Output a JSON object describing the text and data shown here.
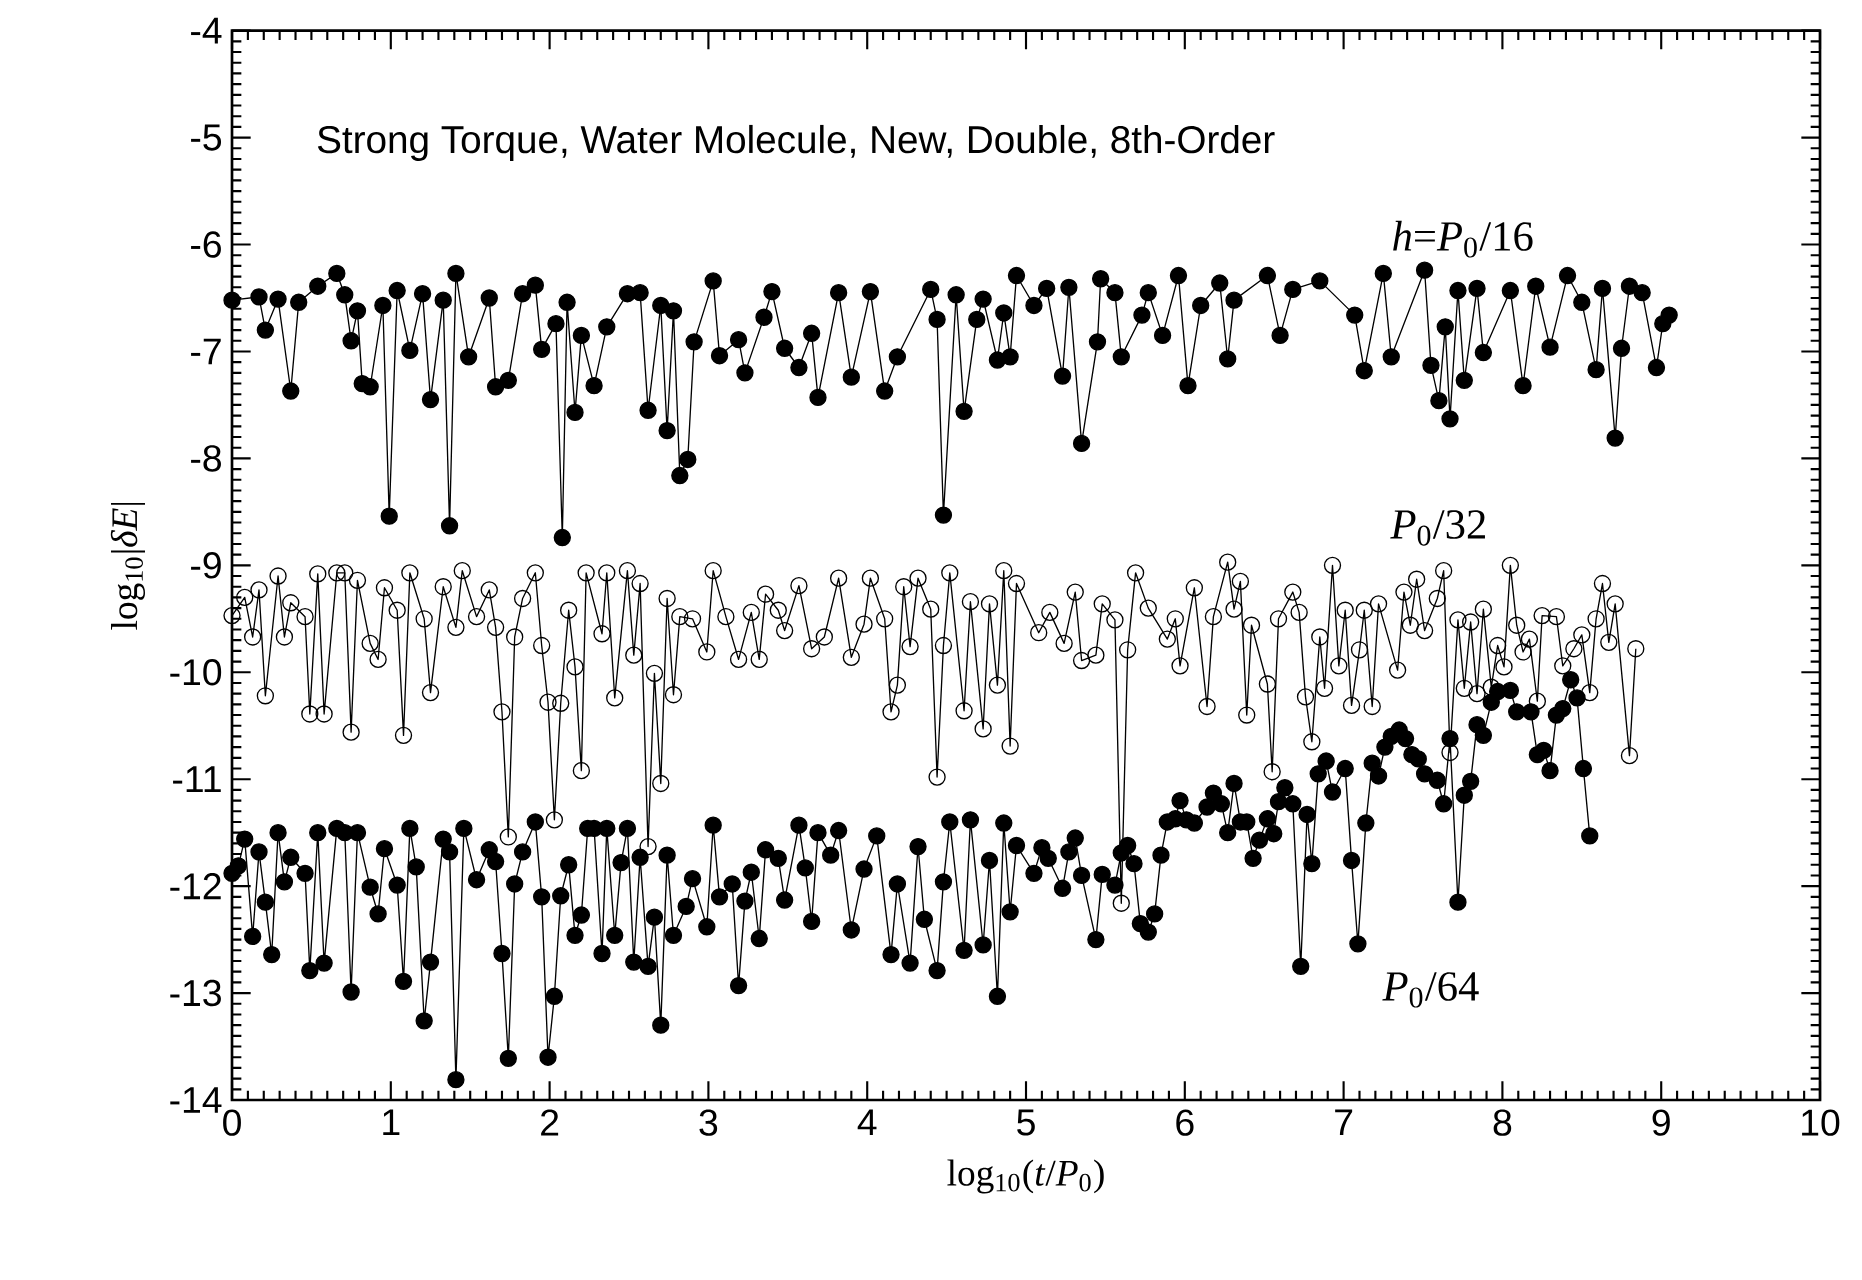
{
  "chart_data": {
    "type": "line",
    "title": "Strong Torque, Water Molecule, New, Double, 8th-Order",
    "xlabel": "log$_{10}$(*t*/*P*$_{0}$)",
    "ylabel": "log$_{10}$|*δE*|",
    "xlim": [
      0,
      10
    ],
    "ylim": [
      -14,
      -4
    ],
    "xticks": [
      0,
      1,
      2,
      3,
      4,
      5,
      6,
      7,
      8,
      9,
      10
    ],
    "yticks": [
      -14,
      -13,
      -12,
      -11,
      -10,
      -9,
      -8,
      -7,
      -6,
      -5,
      -4
    ],
    "line_style": "solid",
    "series": [
      {
        "name": "*h*=*P*$_{0}$/16",
        "color": "#000000",
        "marker": "circle",
        "x": [
          0.0,
          0.17,
          0.21,
          0.29,
          0.37,
          0.42,
          0.54,
          0.66,
          0.71,
          0.75,
          0.79,
          0.82,
          0.87,
          0.95,
          0.99,
          1.04,
          1.12,
          1.2,
          1.25,
          1.33,
          1.37,
          1.41,
          1.49,
          1.62,
          1.66,
          1.74,
          1.83,
          1.91,
          1.95,
          2.04,
          2.08,
          2.11,
          2.16,
          2.2,
          2.28,
          2.36,
          2.49,
          2.57,
          2.62,
          2.7,
          2.74,
          2.78,
          2.82,
          2.87,
          2.91,
          3.03,
          3.07,
          3.19,
          3.23,
          3.35,
          3.4,
          3.48,
          3.57,
          3.65,
          3.69,
          3.82,
          3.9,
          4.02,
          4.11,
          4.19,
          4.4,
          4.44,
          4.48,
          4.56,
          4.61,
          4.69,
          4.73,
          4.82,
          4.86,
          4.9,
          4.94,
          5.05,
          5.13,
          5.23,
          5.27,
          5.35,
          5.45,
          5.47,
          5.56,
          5.6,
          5.73,
          5.77,
          5.86,
          5.96,
          6.02,
          6.1,
          6.22,
          6.27,
          6.31,
          6.52,
          6.6,
          6.68,
          6.85,
          7.07,
          7.13,
          7.25,
          7.3,
          7.51,
          7.55,
          7.6,
          7.64,
          7.67,
          7.72,
          7.76,
          7.84,
          7.88,
          8.05,
          8.13,
          8.21,
          8.3,
          8.41,
          8.5,
          8.59,
          8.63,
          8.71,
          8.75,
          8.8,
          8.88,
          8.97,
          9.01,
          9.05
        ],
        "values": [
          -6.52,
          -6.49,
          -6.8,
          -6.51,
          -7.37,
          -6.54,
          -6.39,
          -6.27,
          -6.47,
          -6.9,
          -6.62,
          -7.3,
          -7.33,
          -6.57,
          -8.54,
          -6.43,
          -6.99,
          -6.46,
          -7.45,
          -6.52,
          -8.63,
          -6.27,
          -7.05,
          -6.5,
          -7.33,
          -7.27,
          -6.46,
          -6.38,
          -6.98,
          -6.74,
          -8.74,
          -6.54,
          -7.57,
          -6.85,
          -7.32,
          -6.77,
          -6.46,
          -6.45,
          -7.55,
          -6.57,
          -7.74,
          -6.62,
          -8.16,
          -8.01,
          -6.91,
          -6.34,
          -7.04,
          -6.89,
          -7.2,
          -6.68,
          -6.44,
          -6.97,
          -7.15,
          -6.83,
          -7.43,
          -6.45,
          -7.24,
          -6.44,
          -7.37,
          -7.05,
          -6.42,
          -6.7,
          -8.53,
          -6.47,
          -7.56,
          -6.7,
          -6.51,
          -7.08,
          -6.64,
          -7.05,
          -6.29,
          -6.57,
          -6.41,
          -7.23,
          -6.4,
          -7.86,
          -6.91,
          -6.32,
          -6.45,
          -7.05,
          -6.66,
          -6.45,
          -6.85,
          -6.29,
          -7.32,
          -6.57,
          -6.36,
          -7.07,
          -6.52,
          -6.29,
          -6.85,
          -6.42,
          -6.34,
          -6.66,
          -7.18,
          -6.27,
          -7.05,
          -6.24,
          -7.13,
          -7.46,
          -6.77,
          -7.63,
          -6.43,
          -7.27,
          -6.41,
          -7.01,
          -6.43,
          -7.32,
          -6.39,
          -6.96,
          -6.29,
          -6.54,
          -7.17,
          -6.41,
          -7.81,
          -6.97,
          -6.39,
          -6.45,
          -7.15,
          -6.74,
          -6.66
        ]
      },
      {
        "name": "*P*$_{0}$/32",
        "color": "#000000",
        "marker": "open circle",
        "x": [
          0.0,
          0.08,
          0.13,
          0.17,
          0.21,
          0.29,
          0.33,
          0.37,
          0.46,
          0.49,
          0.54,
          0.58,
          0.66,
          0.71,
          0.75,
          0.79,
          0.87,
          0.92,
          0.96,
          1.04,
          1.08,
          1.12,
          1.21,
          1.25,
          1.33,
          1.41,
          1.45,
          1.54,
          1.62,
          1.66,
          1.7,
          1.74,
          1.78,
          1.83,
          1.91,
          1.95,
          1.99,
          2.03,
          2.07,
          2.12,
          2.16,
          2.2,
          2.23,
          2.33,
          2.36,
          2.41,
          2.49,
          2.53,
          2.57,
          2.62,
          2.66,
          2.7,
          2.74,
          2.78,
          2.82,
          2.9,
          2.99,
          3.03,
          3.11,
          3.19,
          3.27,
          3.32,
          3.36,
          3.44,
          3.48,
          3.57,
          3.65,
          3.73,
          3.82,
          3.9,
          3.98,
          4.02,
          4.11,
          4.15,
          4.19,
          4.23,
          4.27,
          4.32,
          4.4,
          4.44,
          4.48,
          4.52,
          4.61,
          4.65,
          4.73,
          4.77,
          4.82,
          4.86,
          4.9,
          4.94,
          5.08,
          5.15,
          5.24,
          5.31,
          5.35,
          5.44,
          5.48,
          5.56,
          5.6,
          5.64,
          5.69,
          5.77,
          5.89,
          5.94,
          5.97,
          6.06,
          6.14,
          6.18,
          6.27,
          6.31,
          6.35,
          6.39,
          6.42,
          6.52,
          6.55,
          6.59,
          6.68,
          6.72,
          6.76,
          6.8,
          6.85,
          6.88,
          6.93,
          6.97,
          7.01,
          7.05,
          7.1,
          7.13,
          7.18,
          7.22,
          7.34,
          7.38,
          7.42,
          7.46,
          7.51,
          7.59,
          7.63,
          7.67,
          7.72,
          7.76,
          7.8,
          7.84,
          7.88,
          7.93,
          7.97,
          8.01,
          8.05,
          8.09,
          8.13,
          8.17,
          8.22,
          8.25,
          8.34,
          8.38,
          8.45,
          8.5,
          8.55,
          8.59,
          8.63,
          8.67,
          8.71,
          8.8,
          8.84
        ],
        "values": [
          -9.47,
          -9.3,
          -9.67,
          -9.23,
          -10.22,
          -9.1,
          -9.67,
          -9.35,
          -9.48,
          -10.39,
          -9.08,
          -10.39,
          -9.07,
          -9.07,
          -10.56,
          -9.14,
          -9.73,
          -9.88,
          -9.21,
          -9.42,
          -10.59,
          -9.07,
          -9.5,
          -10.19,
          -9.2,
          -9.58,
          -9.05,
          -9.48,
          -9.23,
          -9.58,
          -10.37,
          -11.54,
          -9.67,
          -9.31,
          -9.07,
          -9.75,
          -10.28,
          -11.38,
          -10.29,
          -9.42,
          -9.95,
          -10.92,
          -9.07,
          -9.64,
          -9.07,
          -10.24,
          -9.05,
          -9.84,
          -9.17,
          -11.63,
          -10.01,
          -11.04,
          -9.31,
          -10.21,
          -9.48,
          -9.5,
          -9.81,
          -9.05,
          -9.48,
          -9.88,
          -9.44,
          -9.88,
          -9.27,
          -9.42,
          -9.61,
          -9.19,
          -9.78,
          -9.67,
          -9.12,
          -9.86,
          -9.55,
          -9.12,
          -9.5,
          -10.37,
          -10.12,
          -9.2,
          -9.76,
          -9.12,
          -9.41,
          -10.98,
          -9.75,
          -9.07,
          -10.36,
          -9.34,
          -10.53,
          -9.36,
          -10.12,
          -9.05,
          -10.69,
          -9.17,
          -9.63,
          -9.44,
          -9.73,
          -9.25,
          -9.89,
          -9.84,
          -9.36,
          -9.51,
          -12.16,
          -9.79,
          -9.07,
          -9.4,
          -9.69,
          -9.5,
          -9.94,
          -9.21,
          -10.32,
          -9.48,
          -8.97,
          -9.41,
          -9.15,
          -10.4,
          -9.56,
          -10.11,
          -10.93,
          -9.5,
          -9.25,
          -9.44,
          -10.23,
          -10.65,
          -9.67,
          -10.15,
          -9.0,
          -9.94,
          -9.42,
          -10.31,
          -9.79,
          -9.42,
          -10.32,
          -9.36,
          -9.98,
          -9.25,
          -9.56,
          -9.13,
          -9.61,
          -9.31,
          -9.05,
          -10.75,
          -9.51,
          -10.15,
          -9.53,
          -10.2,
          -9.41,
          -10.14,
          -9.75,
          -9.95,
          -9.0,
          -9.56,
          -9.81,
          -9.69,
          -10.27,
          -9.47,
          -9.48,
          -9.94,
          -9.78,
          -9.65,
          -10.19,
          -9.5,
          -9.17,
          -9.72,
          -9.36,
          -10.78,
          -9.78
        ]
      },
      {
        "name": "*P*$_{0}$/64",
        "color": "#000000",
        "marker": "circle",
        "x": [
          0.0,
          0.04,
          0.08,
          0.13,
          0.17,
          0.21,
          0.25,
          0.29,
          0.33,
          0.37,
          0.46,
          0.49,
          0.54,
          0.58,
          0.66,
          0.71,
          0.75,
          0.79,
          0.87,
          0.92,
          0.96,
          1.04,
          1.08,
          1.12,
          1.16,
          1.21,
          1.25,
          1.33,
          1.37,
          1.41,
          1.46,
          1.54,
          1.62,
          1.66,
          1.7,
          1.74,
          1.78,
          1.83,
          1.91,
          1.95,
          1.99,
          2.03,
          2.07,
          2.12,
          2.16,
          2.2,
          2.24,
          2.28,
          2.33,
          2.36,
          2.41,
          2.45,
          2.49,
          2.53,
          2.57,
          2.62,
          2.66,
          2.7,
          2.74,
          2.78,
          2.86,
          2.9,
          2.99,
          3.03,
          3.07,
          3.15,
          3.19,
          3.23,
          3.27,
          3.32,
          3.36,
          3.44,
          3.48,
          3.57,
          3.61,
          3.65,
          3.69,
          3.77,
          3.82,
          3.9,
          3.98,
          4.06,
          4.15,
          4.19,
          4.27,
          4.32,
          4.36,
          4.44,
          4.48,
          4.52,
          4.61,
          4.65,
          4.73,
          4.77,
          4.82,
          4.86,
          4.9,
          4.94,
          5.05,
          5.1,
          5.14,
          5.23,
          5.27,
          5.31,
          5.35,
          5.44,
          5.48,
          5.56,
          5.6,
          5.64,
          5.68,
          5.72,
          5.77,
          5.81,
          5.85,
          5.89,
          5.94,
          5.97,
          6.01,
          6.06,
          6.14,
          6.18,
          6.23,
          6.27,
          6.31,
          6.35,
          6.39,
          6.43,
          6.47,
          6.52,
          6.56,
          6.59,
          6.63,
          6.68,
          6.73,
          6.77,
          6.8,
          6.84,
          6.89,
          6.93,
          7.01,
          7.05,
          7.09,
          7.14,
          7.18,
          7.22,
          7.26,
          7.3,
          7.35,
          7.39,
          7.43,
          7.47,
          7.51,
          7.59,
          7.63,
          7.67,
          7.72,
          7.76,
          7.8,
          7.84,
          7.88,
          7.93,
          7.97,
          8.05,
          8.09,
          8.18,
          8.22,
          8.26,
          8.3,
          8.34,
          8.38,
          8.43,
          8.47,
          8.51,
          8.55
        ],
        "values": [
          -11.88,
          -11.81,
          -11.56,
          -12.47,
          -11.68,
          -12.15,
          -12.64,
          -11.5,
          -11.96,
          -11.73,
          -11.88,
          -12.79,
          -11.5,
          -12.72,
          -11.46,
          -11.5,
          -12.99,
          -11.5,
          -12.01,
          -12.26,
          -11.65,
          -11.99,
          -12.89,
          -11.46,
          -11.82,
          -13.26,
          -12.71,
          -11.56,
          -11.68,
          -13.81,
          -11.46,
          -11.94,
          -11.66,
          -11.77,
          -12.63,
          -13.61,
          -11.98,
          -11.68,
          -11.4,
          -12.1,
          -13.6,
          -13.03,
          -12.09,
          -11.8,
          -12.46,
          -12.27,
          -11.46,
          -11.46,
          -12.63,
          -11.46,
          -12.46,
          -11.78,
          -11.46,
          -12.71,
          -11.73,
          -12.75,
          -12.29,
          -13.3,
          -11.71,
          -12.46,
          -12.19,
          -11.93,
          -12.38,
          -11.43,
          -12.1,
          -11.98,
          -12.93,
          -12.14,
          -11.87,
          -12.49,
          -11.66,
          -11.74,
          -12.13,
          -11.43,
          -11.83,
          -12.33,
          -11.5,
          -11.71,
          -11.48,
          -12.41,
          -11.84,
          -11.53,
          -12.64,
          -11.98,
          -12.72,
          -11.63,
          -12.31,
          -12.79,
          -11.96,
          -11.4,
          -12.6,
          -11.38,
          -12.55,
          -11.76,
          -13.03,
          -11.41,
          -12.24,
          -11.62,
          -11.88,
          -11.64,
          -11.74,
          -12.02,
          -11.68,
          -11.55,
          -11.9,
          -12.5,
          -11.89,
          -11.99,
          -11.69,
          -11.62,
          -11.79,
          -12.35,
          -12.43,
          -12.26,
          -11.71,
          -11.4,
          -11.37,
          -11.2,
          -11.38,
          -11.41,
          -11.26,
          -11.13,
          -11.23,
          -11.5,
          -11.04,
          -11.4,
          -11.4,
          -11.74,
          -11.57,
          -11.37,
          -11.51,
          -11.21,
          -11.08,
          -11.23,
          -12.75,
          -11.33,
          -11.79,
          -10.95,
          -10.83,
          -11.12,
          -10.9,
          -11.76,
          -12.54,
          -11.41,
          -10.85,
          -10.97,
          -10.7,
          -10.6,
          -10.54,
          -10.62,
          -10.77,
          -10.81,
          -10.95,
          -11.01,
          -11.23,
          -10.62,
          -12.15,
          -11.15,
          -11.02,
          -10.49,
          -10.59,
          -10.28,
          -10.18,
          -10.17,
          -10.37,
          -10.37,
          -10.77,
          -10.73,
          -10.92,
          -10.4,
          -10.34,
          -10.07,
          -10.24,
          -10.9,
          -11.53
        ]
      }
    ]
  }
}
